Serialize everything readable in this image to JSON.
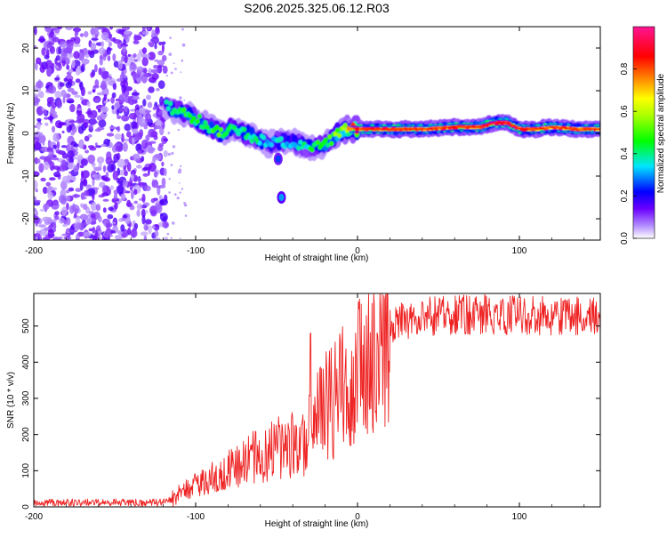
{
  "chart_data": [
    {
      "type": "heatmap",
      "title": "S206.2025.325.06.12.R03",
      "xlabel": "Height of straight line (km)",
      "ylabel": "Frequency (Hz)",
      "xlim": [
        -200,
        150
      ],
      "ylim": [
        -25,
        25
      ],
      "x_ticks": [
        -200,
        -100,
        0,
        100
      ],
      "y_ticks": [
        -20,
        -10,
        0,
        10,
        20
      ],
      "colorbar": {
        "label": "Normalized spectral amplitude",
        "ticks": [
          "0.0",
          "0.2",
          "0.4",
          "0.6",
          "0.8"
        ],
        "colors": [
          "#ffffff",
          "#7b2cff",
          "#0000ff",
          "#00e5ff",
          "#00ff00",
          "#ffff00",
          "#ff7f00",
          "#ff0000",
          "#ff1493"
        ]
      },
      "ridge": {
        "x": [
          -118,
          -110,
          -100,
          -92,
          -85,
          -78,
          -70,
          -62,
          -55,
          -48,
          -40,
          -32,
          -25,
          -18,
          -12,
          -6,
          0,
          20,
          40,
          60,
          75,
          85,
          92,
          100,
          110,
          120,
          135,
          150
        ],
        "y": [
          6.5,
          5,
          3.5,
          1.5,
          0,
          1,
          0,
          -1,
          -2.5,
          -2,
          -2,
          -3,
          -3.2,
          -2,
          0,
          1,
          1,
          1,
          1,
          1.5,
          1.5,
          2.5,
          2.5,
          1,
          1,
          1.5,
          1,
          1
        ],
        "amplitude": [
          0.4,
          0.45,
          0.45,
          0.45,
          0.5,
          0.45,
          0.45,
          0.4,
          0.35,
          0.35,
          0.35,
          0.4,
          0.45,
          0.5,
          0.55,
          0.7,
          0.85,
          0.85,
          0.8,
          0.85,
          0.85,
          0.9,
          0.9,
          0.85,
          0.8,
          0.8,
          0.8,
          0.8
        ]
      },
      "isolated_blobs": [
        {
          "x": -47,
          "y": -15,
          "amplitude": 0.3
        },
        {
          "x": -49,
          "y": -6,
          "amplitude": 0.25
        }
      ],
      "noise_region": {
        "x_range": [
          -200,
          -118
        ],
        "y_range": [
          -25,
          25
        ],
        "amplitude": 0.12
      }
    },
    {
      "type": "line",
      "title": "",
      "xlabel": "Height of straight line (km)",
      "ylabel": "SNR (10 * v/v)",
      "xlim": [
        -200,
        150
      ],
      "ylim": [
        0,
        590
      ],
      "x_ticks": [
        -200,
        -100,
        0,
        100
      ],
      "y_ticks": [
        0,
        100,
        200,
        300,
        400,
        500
      ],
      "color": "#ee2222",
      "series": [
        {
          "name": "SNR",
          "x": [
            -200,
            -180,
            -160,
            -140,
            -120,
            -115,
            -110,
            -100,
            -90,
            -80,
            -70,
            -60,
            -55,
            -50,
            -45,
            -40,
            -35,
            -32,
            -30,
            -28,
            -25,
            -20,
            -15,
            -10,
            -5,
            0,
            5,
            10,
            15,
            20,
            25,
            30,
            40,
            50,
            60,
            80,
            100,
            120,
            140,
            150
          ],
          "values": [
            12,
            12,
            12,
            12,
            12,
            20,
            40,
            60,
            80,
            100,
            120,
            150,
            140,
            170,
            160,
            180,
            160,
            200,
            230,
            210,
            240,
            280,
            290,
            320,
            350,
            370,
            400,
            430,
            460,
            490,
            505,
            515,
            525,
            528,
            530,
            532,
            530,
            528,
            525,
            525
          ]
        }
      ],
      "spike": {
        "x": -29,
        "y": 480
      }
    }
  ]
}
